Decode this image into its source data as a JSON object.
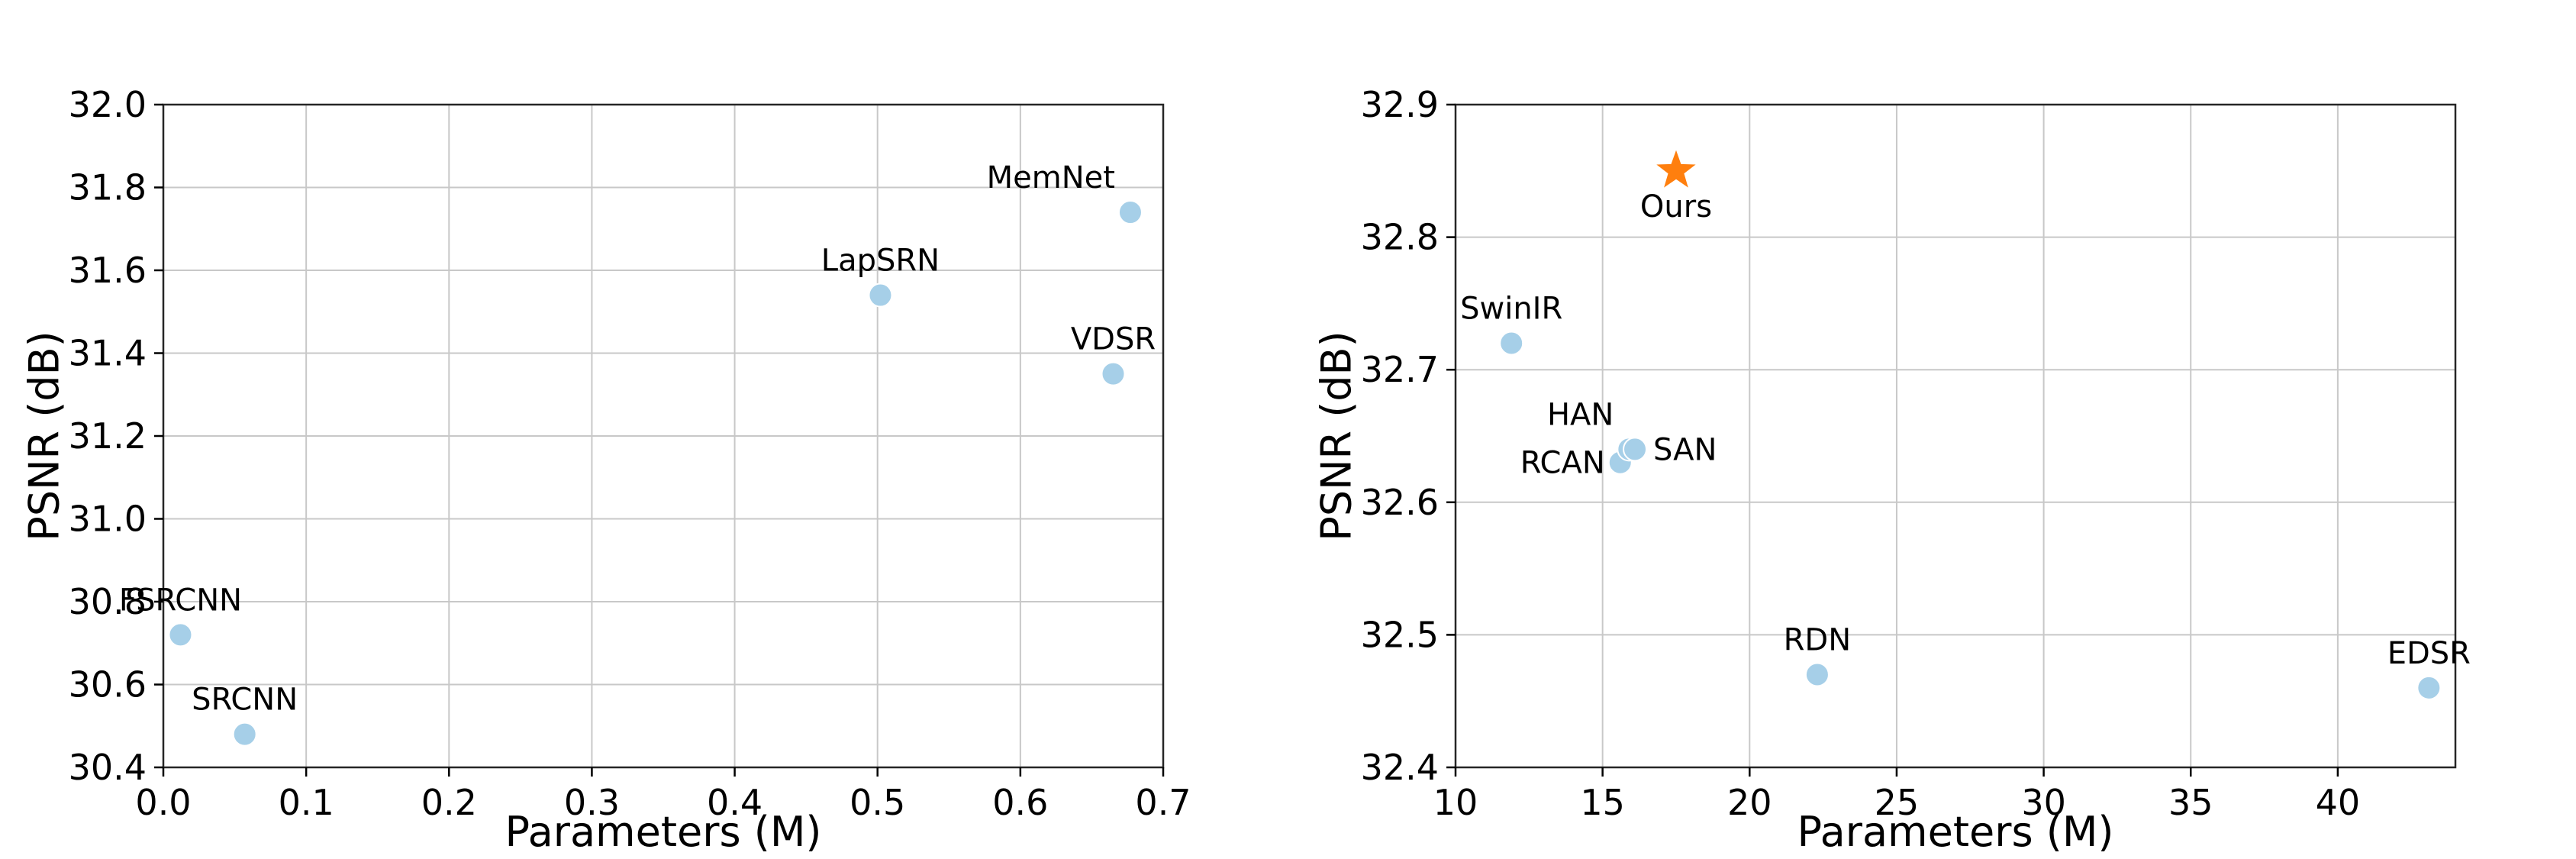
{
  "chart_data": [
    {
      "type": "scatter",
      "xlabel": "Parameters (M)",
      "ylabel": "PSNR (dB)",
      "xlim": [
        0.0,
        0.7
      ],
      "ylim": [
        30.4,
        32.0
      ],
      "xticks": [
        0.0,
        0.1,
        0.2,
        0.3,
        0.4,
        0.5,
        0.6,
        0.7
      ],
      "yticks": [
        30.4,
        30.6,
        30.8,
        31.0,
        31.2,
        31.4,
        31.6,
        31.8,
        32.0
      ],
      "xtick_labels": [
        "0.0",
        "0.1",
        "0.2",
        "0.3",
        "0.4",
        "0.5",
        "0.6",
        "0.7"
      ],
      "ytick_labels": [
        "30.4",
        "30.6",
        "30.8",
        "31.0",
        "31.2",
        "31.4",
        "31.6",
        "31.8",
        "32.0"
      ],
      "grid": true,
      "points": [
        {
          "label": "FSRCNN",
          "x": 0.012,
          "y": 30.72,
          "label_pos": "above",
          "color": "#a6cfe8",
          "marker": "circle"
        },
        {
          "label": "SRCNN",
          "x": 0.057,
          "y": 30.48,
          "label_pos": "above",
          "color": "#a6cfe8",
          "marker": "circle"
        },
        {
          "label": "LapSRN",
          "x": 0.502,
          "y": 31.54,
          "label_pos": "above",
          "color": "#a6cfe8",
          "marker": "circle"
        },
        {
          "label": "VDSR",
          "x": 0.665,
          "y": 31.35,
          "label_pos": "above",
          "color": "#a6cfe8",
          "marker": "circle"
        },
        {
          "label": "MemNet",
          "x": 0.677,
          "y": 31.74,
          "label_pos": "above-left",
          "color": "#a6cfe8",
          "marker": "circle"
        }
      ]
    },
    {
      "type": "scatter",
      "xlabel": "Parameters (M)",
      "ylabel": "PSNR (dB)",
      "xlim": [
        10,
        44
      ],
      "ylim": [
        32.4,
        32.9
      ],
      "xticks": [
        10,
        15,
        20,
        25,
        30,
        35,
        40
      ],
      "yticks": [
        32.4,
        32.5,
        32.6,
        32.7,
        32.8,
        32.9
      ],
      "xtick_labels": [
        "10",
        "15",
        "20",
        "25",
        "30",
        "35",
        "40"
      ],
      "ytick_labels": [
        "32.4",
        "32.5",
        "32.6",
        "32.7",
        "32.8",
        "32.9"
      ],
      "grid": true,
      "points": [
        {
          "label": "SwinIR",
          "x": 11.9,
          "y": 32.72,
          "label_pos": "above",
          "color": "#a6cfe8",
          "marker": "circle"
        },
        {
          "label": "RCAN",
          "x": 15.6,
          "y": 32.63,
          "label_pos": "left",
          "color": "#a6cfe8",
          "marker": "circle"
        },
        {
          "label": "HAN",
          "x": 15.9,
          "y": 32.64,
          "label_pos": "above-left",
          "color": "#a6cfe8",
          "marker": "circle"
        },
        {
          "label": "SAN",
          "x": 16.1,
          "y": 32.64,
          "label_pos": "right",
          "color": "#a6cfe8",
          "marker": "circle"
        },
        {
          "label": "RDN",
          "x": 22.3,
          "y": 32.47,
          "label_pos": "above",
          "color": "#a6cfe8",
          "marker": "circle"
        },
        {
          "label": "EDSR",
          "x": 43.1,
          "y": 32.46,
          "label_pos": "above",
          "color": "#a6cfe8",
          "marker": "circle"
        },
        {
          "label": "Ours",
          "x": 17.5,
          "y": 32.85,
          "label_pos": "below",
          "color": "#ff7f0e",
          "marker": "star"
        }
      ]
    }
  ]
}
